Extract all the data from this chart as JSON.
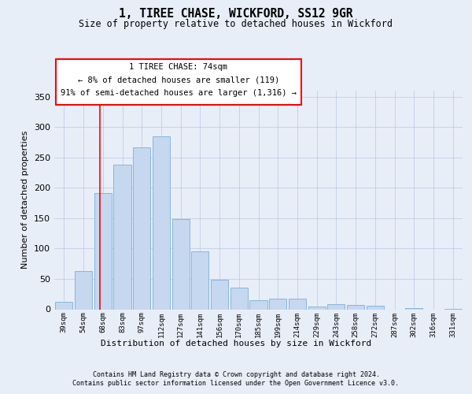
{
  "title": "1, TIREE CHASE, WICKFORD, SS12 9GR",
  "subtitle": "Size of property relative to detached houses in Wickford",
  "xlabel": "Distribution of detached houses by size in Wickford",
  "ylabel": "Number of detached properties",
  "footer_line1": "Contains HM Land Registry data © Crown copyright and database right 2024.",
  "footer_line2": "Contains public sector information licensed under the Open Government Licence v3.0.",
  "annotation_line1": "1 TIREE CHASE: 74sqm",
  "annotation_line2": "← 8% of detached houses are smaller (119)",
  "annotation_line3": "91% of semi-detached houses are larger (1,316) →",
  "bar_color": "#c5d8f0",
  "bar_edge_color": "#7bafd4",
  "background_color": "#e8eef8",
  "categories": [
    "39sqm",
    "54sqm",
    "68sqm",
    "83sqm",
    "97sqm",
    "112sqm",
    "127sqm",
    "141sqm",
    "156sqm",
    "170sqm",
    "185sqm",
    "199sqm",
    "214sqm",
    "229sqm",
    "243sqm",
    "258sqm",
    "272sqm",
    "287sqm",
    "302sqm",
    "316sqm",
    "331sqm"
  ],
  "values": [
    12,
    63,
    192,
    238,
    267,
    285,
    148,
    96,
    49,
    36,
    15,
    17,
    18,
    4,
    8,
    7,
    6,
    0,
    2,
    0,
    1
  ],
  "ylim": [
    0,
    360
  ],
  "yticks": [
    0,
    50,
    100,
    150,
    200,
    250,
    300,
    350
  ],
  "red_line_x": 1.85
}
